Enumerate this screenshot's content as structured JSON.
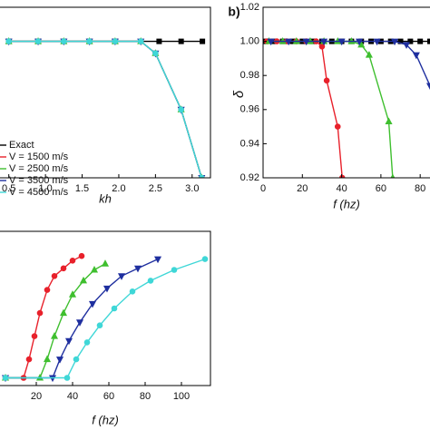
{
  "chart_data": [
    {
      "type": "line",
      "xlabel": "kh",
      "xlim": [
        0.38,
        3.25
      ],
      "ylim": [
        0.92,
        1.02
      ],
      "xticks": [
        0.5,
        {
          "value": 1,
          "label": "1.0"
        },
        1.5,
        {
          "value": 2,
          "label": "2.0"
        },
        2.5,
        {
          "value": 3,
          "label": "3.0"
        }
      ],
      "series": [
        {
          "name": "Exact",
          "color": "#000000",
          "marker": "square",
          "x": [
            0.5,
            0.9,
            1.25,
            1.6,
            1.95,
            2.55,
            2.85,
            3.14
          ],
          "values": [
            1,
            1,
            1,
            1,
            1,
            1,
            1,
            1
          ]
        },
        {
          "name": "V = 1500 m/s",
          "color": "#e8212b",
          "marker": "circle",
          "x": [
            0.5,
            0.9,
            1.25,
            1.6,
            1.95,
            2.3,
            2.5,
            2.85,
            3.13
          ],
          "values": [
            1,
            1,
            1,
            1,
            1,
            1,
            0.993,
            0.96,
            0.92
          ]
        },
        {
          "name": "V = 2500 m/s",
          "color": "#3fbf2f",
          "marker": "up",
          "x": [
            0.5,
            0.9,
            1.25,
            1.6,
            1.95,
            2.3,
            2.5,
            2.85,
            3.13
          ],
          "values": [
            1,
            1,
            1,
            1,
            1,
            1,
            0.993,
            0.96,
            0.92
          ]
        },
        {
          "name": "V = 3500 m/s",
          "color": "#1f2f9f",
          "marker": "down",
          "x": [
            0.5,
            0.9,
            1.25,
            1.6,
            1.95,
            2.3,
            2.5,
            2.85,
            3.13
          ],
          "values": [
            1,
            1,
            1,
            1,
            1,
            1,
            0.993,
            0.96,
            0.92
          ]
        },
        {
          "name": "V = 4500 m/s",
          "color": "#3fd7d7",
          "marker": "circle",
          "x": [
            0.5,
            0.9,
            1.25,
            1.6,
            1.95,
            2.3,
            2.5,
            2.85,
            3.13
          ],
          "values": [
            1,
            1,
            1,
            1,
            1,
            1,
            0.993,
            0.96,
            0.92
          ]
        }
      ]
    },
    {
      "type": "line",
      "panel_label": "b)",
      "xlabel": "f (hz)",
      "ylabel": "δ",
      "xlim": [
        0,
        85
      ],
      "ylim": [
        0.92,
        1.02
      ],
      "xticks": [
        0,
        20,
        40,
        60,
        80
      ],
      "yticks": [
        0.92,
        0.94,
        0.96,
        0.98,
        {
          "value": 1,
          "label": "1.00"
        },
        1.02
      ],
      "series": [
        {
          "color": "#000000",
          "marker": "square",
          "x": [
            0,
            5,
            10,
            15,
            20,
            25,
            30,
            35,
            40,
            45,
            50,
            55,
            60,
            65,
            70,
            75,
            80,
            85
          ],
          "values": [
            1,
            1,
            1,
            1,
            1,
            1,
            1,
            1,
            1,
            1,
            1,
            1,
            1,
            1,
            1,
            1,
            1,
            1
          ]
        },
        {
          "color": "#e8212b",
          "marker": "circle",
          "x": [
            2,
            7,
            12,
            17,
            22,
            27,
            30,
            32.4,
            38,
            40.3
          ],
          "values": [
            1,
            1,
            1,
            1,
            1,
            1,
            0.997,
            0.977,
            0.95,
            0.92
          ]
        },
        {
          "color": "#3fbf2f",
          "marker": "up",
          "x": [
            3,
            10,
            17,
            24,
            31,
            38,
            45,
            50,
            54,
            64,
            66
          ],
          "values": [
            1,
            1,
            1,
            1,
            1,
            1,
            1,
            0.998,
            0.992,
            0.953,
            0.92
          ]
        },
        {
          "color": "#1f2f9f",
          "marker": "down",
          "x": [
            4,
            13,
            22,
            31,
            40,
            49,
            58,
            67,
            73,
            78,
            85
          ],
          "values": [
            1,
            1,
            1,
            1,
            1,
            1,
            1,
            1,
            0.998,
            0.992,
            0.974
          ]
        }
      ]
    },
    {
      "type": "line",
      "xlabel": "f (hz)",
      "xlim": [
        0,
        116
      ],
      "ylim": [
        0,
        1
      ],
      "xticks": [
        20,
        40,
        60,
        80,
        100
      ],
      "series": [
        {
          "color": "#e8212b",
          "marker": "circle",
          "x": [
            3,
            13,
            16,
            19,
            22,
            26,
            30,
            35,
            40,
            45
          ],
          "values": [
            0.05,
            0.05,
            0.17,
            0.32,
            0.47,
            0.62,
            0.71,
            0.76,
            0.81,
            0.84
          ]
        },
        {
          "color": "#3fbf2f",
          "marker": "up",
          "x": [
            3,
            22,
            26,
            30,
            35,
            40,
            46,
            52,
            58
          ],
          "values": [
            0.05,
            0.05,
            0.17,
            0.32,
            0.47,
            0.59,
            0.68,
            0.75,
            0.79
          ]
        },
        {
          "color": "#1f2f9f",
          "marker": "down",
          "x": [
            3,
            29,
            33,
            38,
            44,
            51,
            59,
            67,
            76,
            87
          ],
          "values": [
            0.05,
            0.05,
            0.17,
            0.29,
            0.41,
            0.53,
            0.63,
            0.71,
            0.76,
            0.82
          ]
        },
        {
          "color": "#3fd7d7",
          "marker": "circle",
          "x": [
            3,
            37,
            42,
            48,
            55,
            63,
            73,
            83,
            96,
            113
          ],
          "values": [
            0.05,
            0.05,
            0.17,
            0.28,
            0.39,
            0.5,
            0.61,
            0.68,
            0.75,
            0.82
          ]
        }
      ]
    }
  ]
}
